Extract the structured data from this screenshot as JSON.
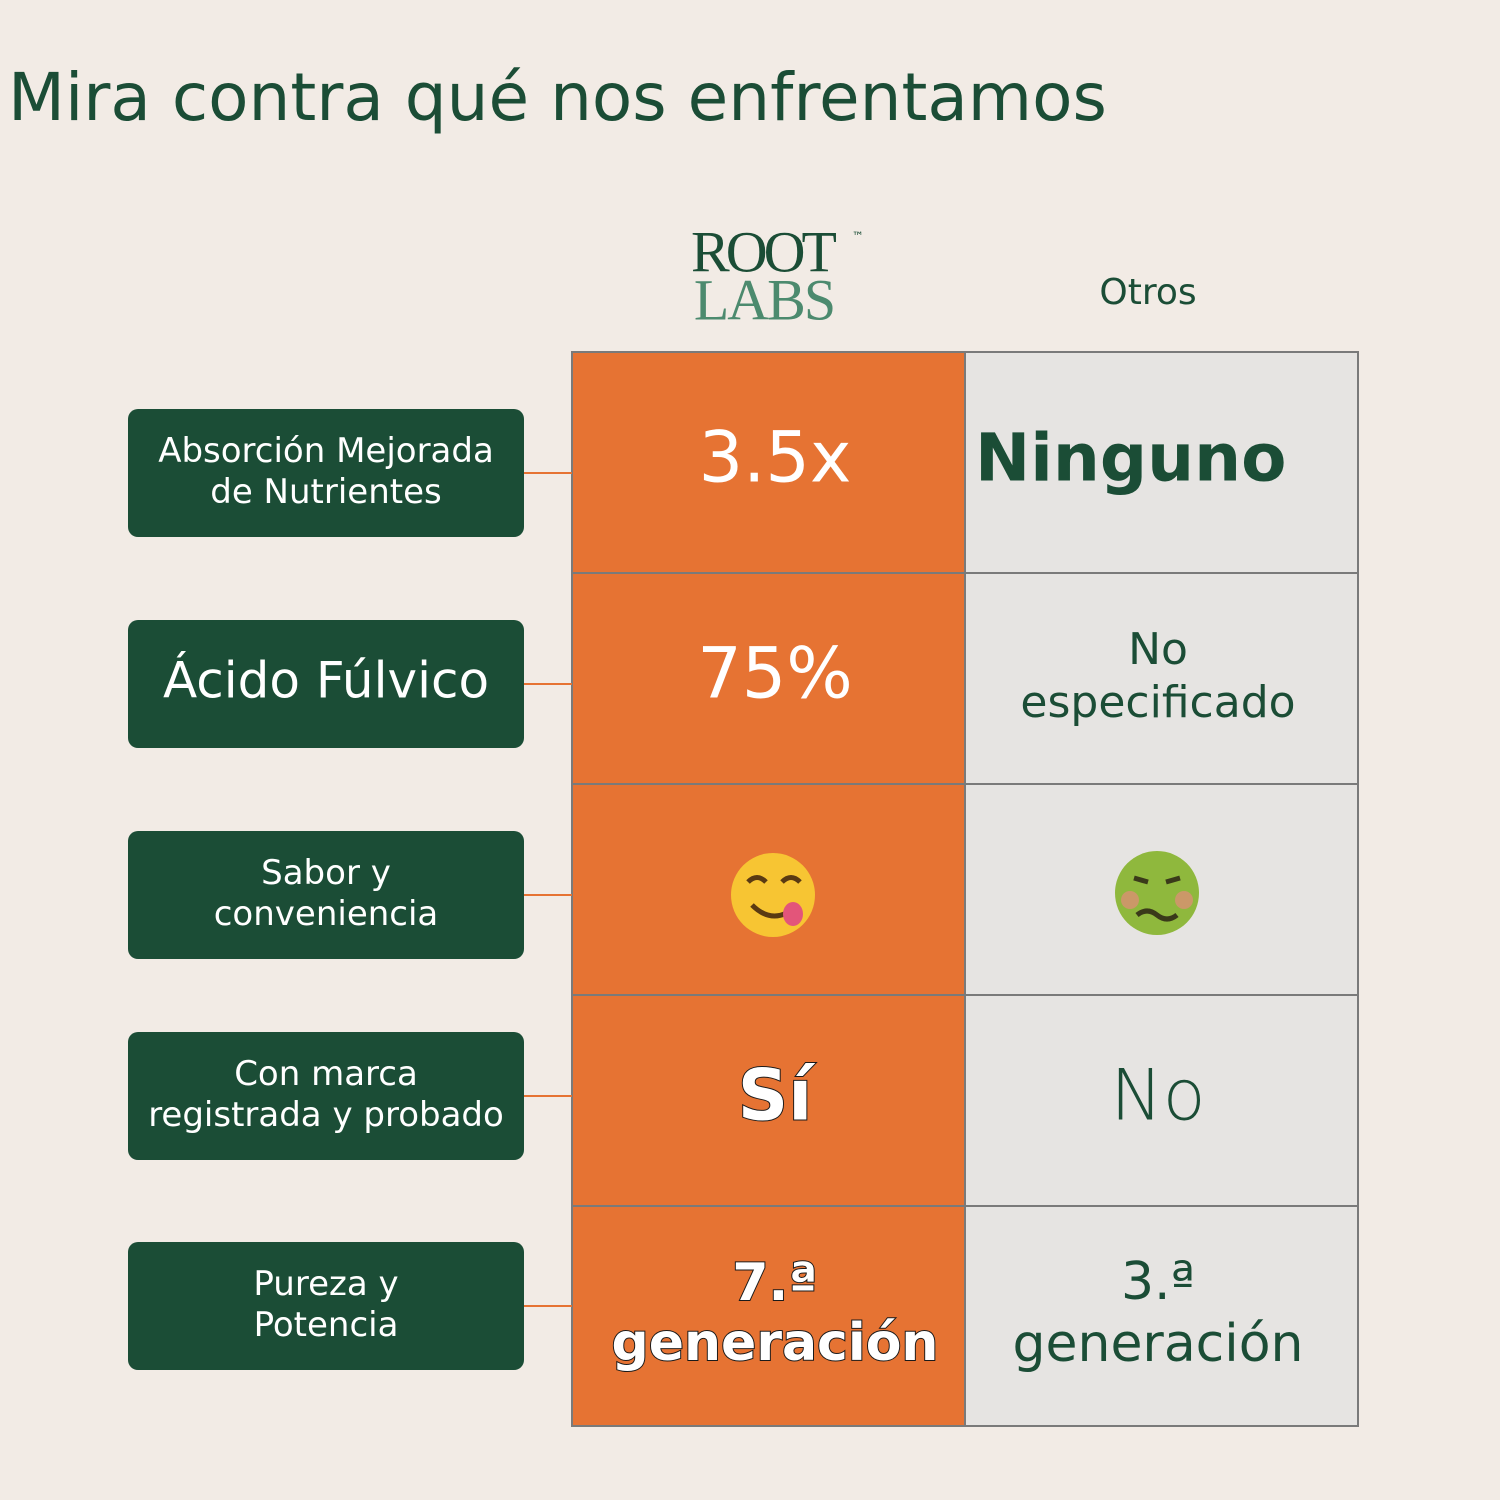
{
  "title": "Mira contra qué nos enfrentamos",
  "logo": {
    "line1": "ROOT",
    "line2": "LABS",
    "mark": "™"
  },
  "columns": {
    "others": "Otros"
  },
  "rows": [
    {
      "label": [
        "Absorción Mejorada",
        "de Nutrientes"
      ],
      "root": [
        "3.5x"
      ],
      "others": [
        "Ninguno"
      ]
    },
    {
      "label": [
        "Ácido Fúlvico"
      ],
      "root": [
        "75%"
      ],
      "others": [
        "No",
        "especificado"
      ]
    },
    {
      "label": [
        "Sabor y",
        "conveniencia"
      ]
    },
    {
      "label": [
        "Con marca",
        "registrada y probado"
      ],
      "root": [
        "Sí"
      ],
      "others": [
        "No"
      ]
    },
    {
      "label": [
        "Pureza y",
        "Potencia"
      ],
      "root": [
        "7.ª",
        "generación"
      ],
      "others": [
        "3.ª",
        "generación"
      ]
    }
  ]
}
